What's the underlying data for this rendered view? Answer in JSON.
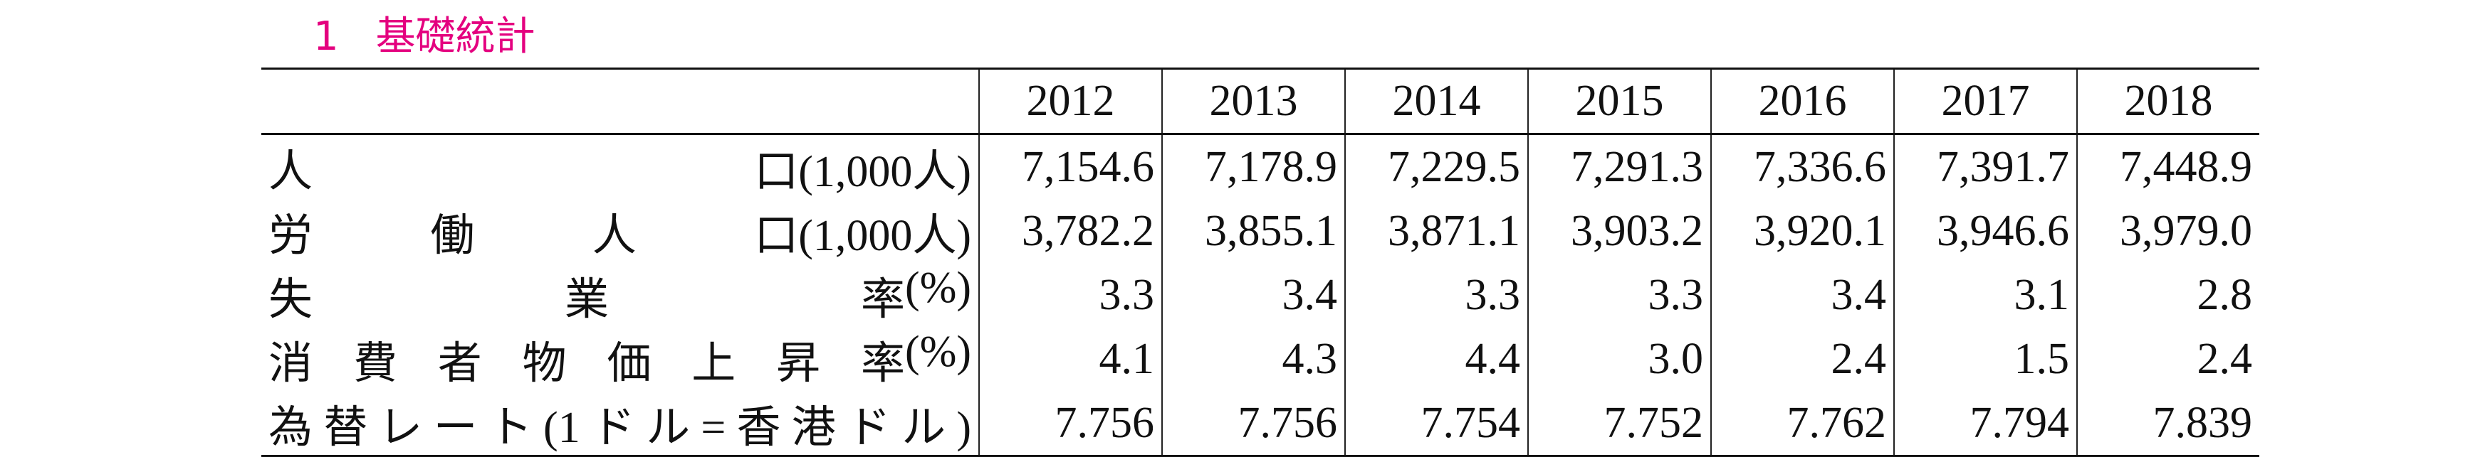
{
  "title": {
    "number": "1",
    "text": "基礎統計"
  },
  "table": {
    "columns": [
      "2012",
      "2013",
      "2014",
      "2015",
      "2016",
      "2017",
      "2018"
    ],
    "rows": [
      {
        "label": "人口",
        "unit": "(1,000人)",
        "values": [
          "7,154.6",
          "7,178.9",
          "7,229.5",
          "7,291.3",
          "7,336.6",
          "7,391.7",
          "7,448.9"
        ]
      },
      {
        "label": "労働人口",
        "unit": "(1,000人)",
        "values": [
          "3,782.2",
          "3,855.1",
          "3,871.1",
          "3,903.2",
          "3,920.1",
          "3,946.6",
          "3,979.0"
        ]
      },
      {
        "label": "失業率",
        "unit": "(%)",
        "values": [
          "3.3",
          "3.4",
          "3.3",
          "3.3",
          "3.4",
          "3.1",
          "2.8"
        ]
      },
      {
        "label": "消費者物価上昇率",
        "unit": "(%)",
        "values": [
          "4.1",
          "4.3",
          "4.4",
          "3.0",
          "2.4",
          "1.5",
          "2.4"
        ]
      },
      {
        "label": "為替レート(1ドル=香港ドル)",
        "values": [
          "7.756",
          "7.756",
          "7.754",
          "7.752",
          "7.762",
          "7.794",
          "7.839"
        ]
      }
    ]
  }
}
